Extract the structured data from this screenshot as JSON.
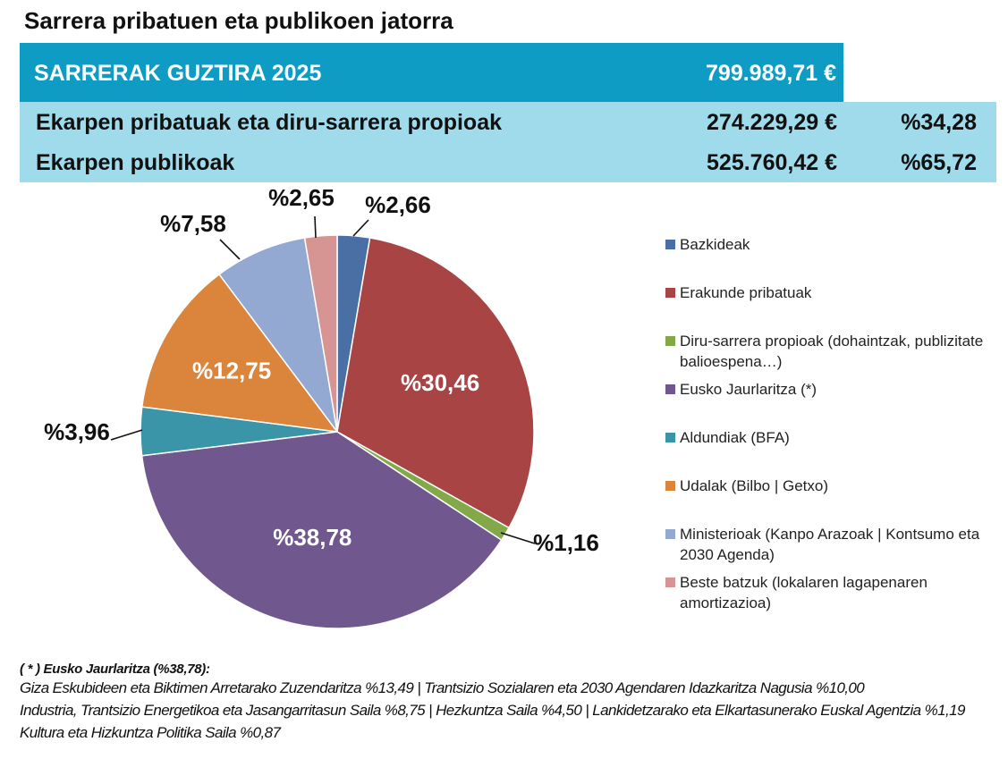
{
  "header": {
    "title": "Sarrera pribatuen eta publikoen jatorra"
  },
  "totals": {
    "label": "SARRERAK GUZTIRA 2025",
    "amount": "799.989,71 €",
    "rows": [
      {
        "label": "Ekarpen pribatuak eta diru-sarrera propioak",
        "amount": "274.229,29 €",
        "percent": "%34,28"
      },
      {
        "label": "Ekarpen publikoak",
        "amount": "525.760,42 €",
        "percent": "%65,72"
      }
    ]
  },
  "chart_data": {
    "type": "pie",
    "title": "",
    "start_angle_deg": 0,
    "direction": "clockwise",
    "legend_position": "right",
    "slices": [
      {
        "name": "Bazkideak",
        "value": 2.66,
        "label": "%2,66",
        "color": "#4a6fa5",
        "label_placement": "outside"
      },
      {
        "name": "Erakunde pribatuak",
        "value": 30.46,
        "label": "%30,46",
        "color": "#a84444",
        "label_placement": "inside"
      },
      {
        "name": "Diru-sarrera propioak (dohaintzak, publizitate balioespena…)",
        "value": 1.16,
        "label": "%1,16",
        "color": "#82a847",
        "label_placement": "outside"
      },
      {
        "name": "Eusko Jaurlaritza (*)",
        "value": 38.78,
        "label": "%38,78",
        "color": "#70578e",
        "label_placement": "inside"
      },
      {
        "name": "Aldundiak (BFA)",
        "value": 3.96,
        "label": "%3,96",
        "color": "#3a95a8",
        "label_placement": "outside"
      },
      {
        "name": "Udalak (Bilbo | Getxo)",
        "value": 12.75,
        "label": "%12,75",
        "color": "#db853c",
        "label_placement": "inside"
      },
      {
        "name": "Ministerioak (Kanpo Arazoak | Kontsumo eta 2030 Agenda)",
        "value": 7.58,
        "label": "%7,58",
        "color": "#93a9d1",
        "label_placement": "outside"
      },
      {
        "name": "Beste batzuk (lokalaren lagapenaren amortizazioa)",
        "value": 2.65,
        "label": "%2,65",
        "color": "#d69593",
        "label_placement": "outside"
      }
    ]
  },
  "footnote": {
    "heading": "( * ) Eusko Jaurlaritza  (%38,78):",
    "lines": [
      "Giza Eskubideen eta Biktimen Arretarako Zuzendaritza  %13,49  |  Trantsizio Sozialaren eta 2030 Agendaren Idazkaritza Nagusia  %10,00",
      "Industria, Trantsizio Energetikoa eta Jasangarritasun Saila  %8,75  |  Hezkuntza Saila  %4,50  |  Lankidetzarako eta Elkartasunerako Euskal Agentzia  %1,19",
      "Kultura eta Hizkuntza Politika Saila  %0,87"
    ]
  }
}
